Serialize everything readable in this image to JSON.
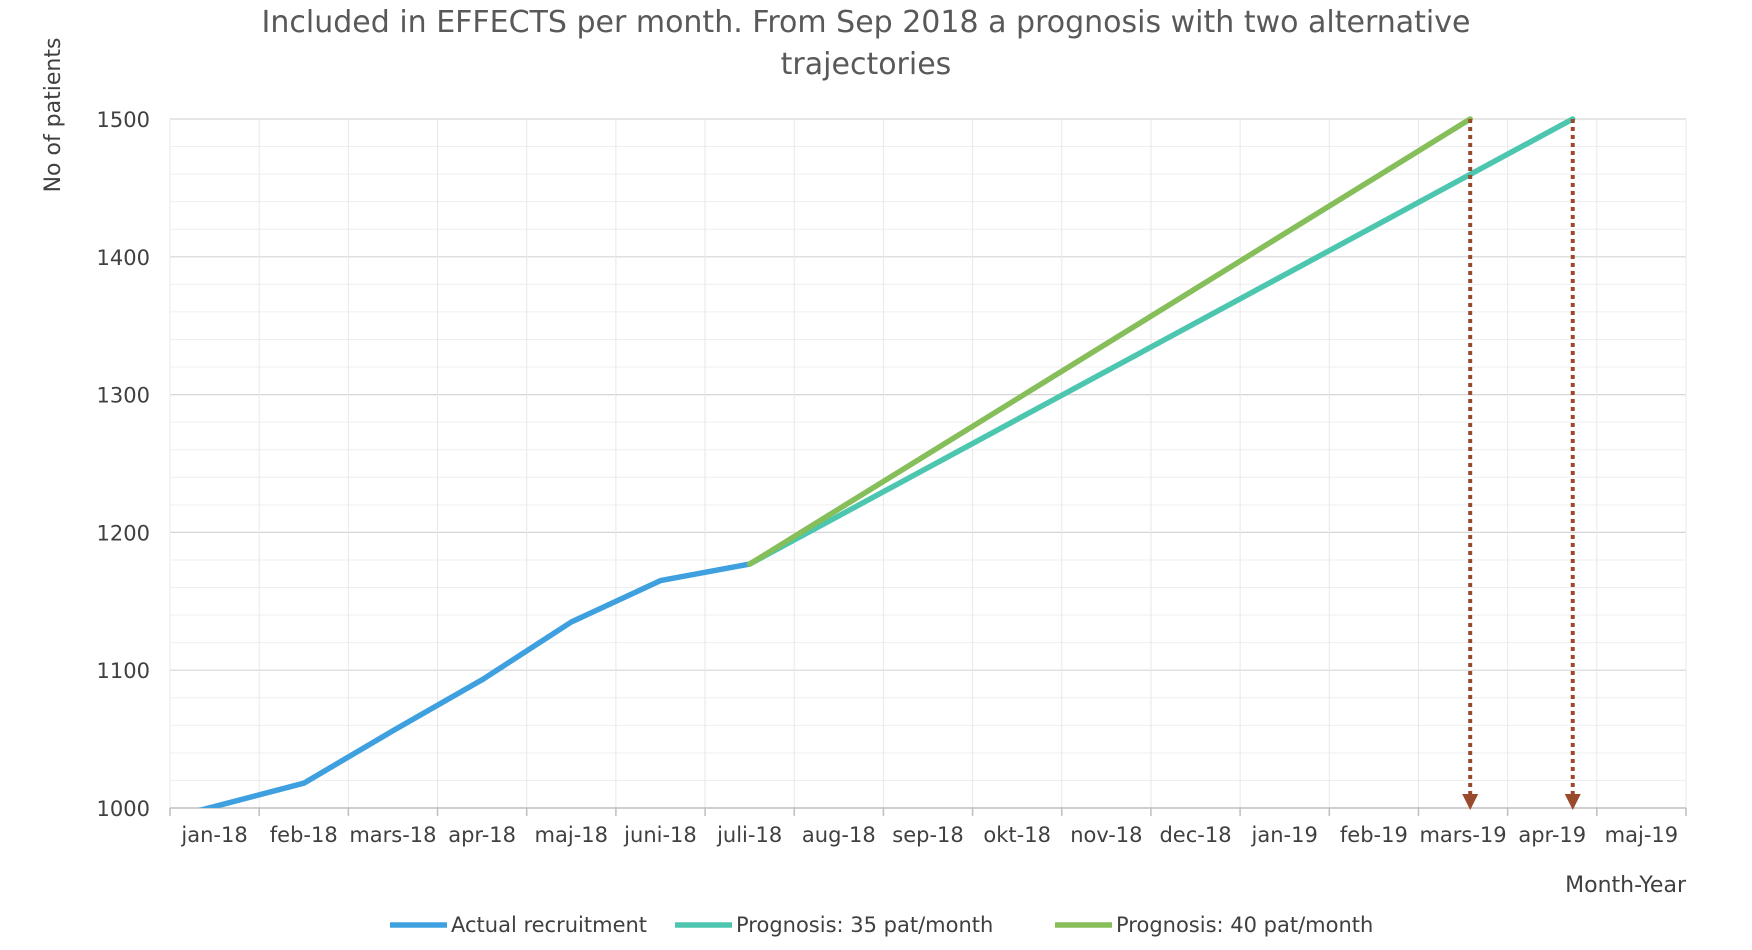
{
  "chart_data": {
    "type": "line",
    "title_lines": [
      "Included in EFFECTS per month. From Sep 2018 a prognosis with two alternative",
      "trajectories"
    ],
    "xlabel": "Month-Year",
    "ylabel": "No of patients",
    "ylim": [
      1000,
      1500
    ],
    "y_ticks": [
      1000,
      1100,
      1200,
      1300,
      1400,
      1500
    ],
    "y_minor_step": 20,
    "grid": true,
    "legend_position": "bottom",
    "categories": [
      "jan-18",
      "feb-18",
      "mars-18",
      "apr-18",
      "maj-18",
      "juni-18",
      "juli-18",
      "aug-18",
      "sep-18",
      "okt-18",
      "nov-18",
      "dec-18",
      "jan-19",
      "feb-19",
      "mars-19",
      "apr-19",
      "maj-19"
    ],
    "series": [
      {
        "name": "Actual recruitment",
        "color": "#3fa0e0",
        "points": [
          {
            "x": -0.3,
            "y": 996
          },
          {
            "x": 1,
            "y": 1018
          },
          {
            "x": 2,
            "y": 1056
          },
          {
            "x": 3,
            "y": 1093
          },
          {
            "x": 4,
            "y": 1135
          },
          {
            "x": 5,
            "y": 1165
          },
          {
            "x": 6,
            "y": 1177
          }
        ]
      },
      {
        "name": "Prognosis: 35 pat/month",
        "color": "#4cc6ae",
        "points": [
          {
            "x": 6,
            "y": 1177
          },
          {
            "x": 15.23,
            "y": 1500
          }
        ]
      },
      {
        "name": "Prognosis: 40 pat/month",
        "color": "#86bf5a",
        "points": [
          {
            "x": 6,
            "y": 1177
          },
          {
            "x": 14.08,
            "y": 1500
          }
        ]
      }
    ],
    "annotations": [
      {
        "type": "arrow-down",
        "x": 14.08,
        "from_y": 1500,
        "to_y": 1000,
        "color": "#9a4a2c",
        "style": "dotted"
      },
      {
        "type": "arrow-down",
        "x": 15.23,
        "from_y": 1500,
        "to_y": 1000,
        "color": "#9a4a2c",
        "style": "dotted"
      }
    ]
  }
}
